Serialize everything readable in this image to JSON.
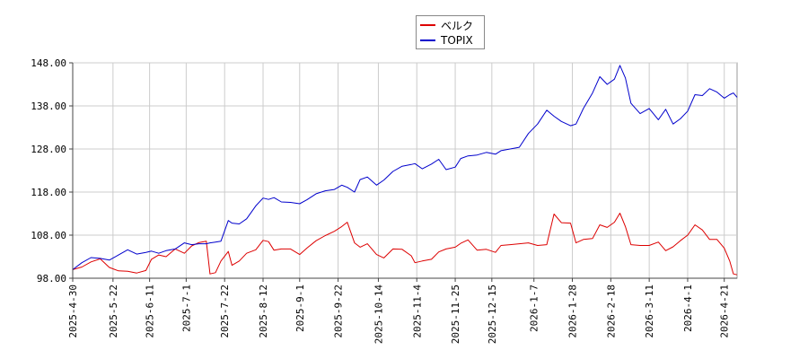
{
  "chart_data": {
    "type": "line",
    "title": "",
    "xlabel": "",
    "ylabel": "",
    "ylim": [
      98,
      148
    ],
    "y_ticks": [
      "98.00",
      "108.00",
      "118.00",
      "128.00",
      "138.00",
      "148.00"
    ],
    "x_ticks": [
      "2025-4-30",
      "2025-5-22",
      "2025-6-11",
      "2025-7-1",
      "2025-7-22",
      "2025-8-12",
      "2025-9-1",
      "2025-9-22",
      "2025-10-14",
      "2025-11-4",
      "2025-11-25",
      "2025-12-15",
      "2026-1-7",
      "2026-1-28",
      "2026-2-18",
      "2026-3-11",
      "2026-4-1",
      "2026-4-21"
    ],
    "grid": true,
    "legend_position": "top-center",
    "x_start": "2025-4-30",
    "x_end": "2026-4-28",
    "series": [
      {
        "name": "ベルク",
        "color": "#dd0000",
        "points": [
          [
            "2025-4-30",
            100.0
          ],
          [
            "2025-5-5",
            100.6
          ],
          [
            "2025-5-10",
            101.8
          ],
          [
            "2025-5-15",
            102.5
          ],
          [
            "2025-5-20",
            100.5
          ],
          [
            "2025-5-25",
            99.7
          ],
          [
            "2025-5-30",
            99.6
          ],
          [
            "2025-6-4",
            99.2
          ],
          [
            "2025-6-9",
            99.8
          ],
          [
            "2025-6-12",
            102.4
          ],
          [
            "2025-6-16",
            103.4
          ],
          [
            "2025-6-20",
            103.0
          ],
          [
            "2025-6-25",
            104.8
          ],
          [
            "2025-6-30",
            103.8
          ],
          [
            "2025-7-4",
            105.5
          ],
          [
            "2025-7-8",
            106.3
          ],
          [
            "2025-7-12",
            106.6
          ],
          [
            "2025-7-14",
            99.0
          ],
          [
            "2025-7-17",
            99.3
          ],
          [
            "2025-7-20",
            102.0
          ],
          [
            "2025-7-24",
            104.2
          ],
          [
            "2025-7-26",
            101.0
          ],
          [
            "2025-7-30",
            102.0
          ],
          [
            "2025-8-3",
            103.8
          ],
          [
            "2025-8-8",
            104.6
          ],
          [
            "2025-8-12",
            106.8
          ],
          [
            "2025-8-15",
            106.5
          ],
          [
            "2025-8-18",
            104.5
          ],
          [
            "2025-8-22",
            104.8
          ],
          [
            "2025-8-27",
            104.8
          ],
          [
            "2025-9-1",
            103.5
          ],
          [
            "2025-9-5",
            105.0
          ],
          [
            "2025-9-10",
            106.7
          ],
          [
            "2025-9-15",
            107.9
          ],
          [
            "2025-9-20",
            108.9
          ],
          [
            "2025-9-24",
            110.0
          ],
          [
            "2025-9-27",
            111.0
          ],
          [
            "2025-10-1",
            106.2
          ],
          [
            "2025-10-4",
            105.2
          ],
          [
            "2025-10-8",
            106.0
          ],
          [
            "2025-10-13",
            103.5
          ],
          [
            "2025-10-17",
            102.7
          ],
          [
            "2025-10-22",
            104.8
          ],
          [
            "2025-10-27",
            104.7
          ],
          [
            "2025-11-1",
            103.2
          ],
          [
            "2025-11-3",
            101.6
          ],
          [
            "2025-11-7",
            102.0
          ],
          [
            "2025-11-12",
            102.4
          ],
          [
            "2025-11-16",
            104.1
          ],
          [
            "2025-11-20",
            104.8
          ],
          [
            "2025-11-25",
            105.2
          ],
          [
            "2025-11-28",
            106.1
          ],
          [
            "2025-12-2",
            106.9
          ],
          [
            "2025-12-7",
            104.5
          ],
          [
            "2025-12-12",
            104.7
          ],
          [
            "2025-12-17",
            104.0
          ],
          [
            "2025-12-20",
            105.6
          ],
          [
            "2025-12-25",
            105.8
          ],
          [
            "2025-12-30",
            106.0
          ],
          [
            "2026-1-4",
            106.2
          ],
          [
            "2026-1-9",
            105.6
          ],
          [
            "2026-1-14",
            105.8
          ],
          [
            "2026-1-18",
            112.9
          ],
          [
            "2026-1-22",
            110.9
          ],
          [
            "2026-1-27",
            110.8
          ],
          [
            "2026-1-30",
            106.2
          ],
          [
            "2026-2-3",
            107.0
          ],
          [
            "2026-2-8",
            107.2
          ],
          [
            "2026-2-12",
            110.4
          ],
          [
            "2026-2-16",
            109.8
          ],
          [
            "2026-2-20",
            111.0
          ],
          [
            "2026-2-23",
            113.1
          ],
          [
            "2026-2-26",
            110.0
          ],
          [
            "2026-3-1",
            105.8
          ],
          [
            "2026-3-6",
            105.6
          ],
          [
            "2026-3-11",
            105.6
          ],
          [
            "2026-3-16",
            106.4
          ],
          [
            "2026-3-20",
            104.4
          ],
          [
            "2026-3-24",
            105.3
          ],
          [
            "2026-3-28",
            106.7
          ],
          [
            "2026-4-1",
            108.0
          ],
          [
            "2026-4-5",
            110.4
          ],
          [
            "2026-4-9",
            109.2
          ],
          [
            "2026-4-13",
            107.0
          ],
          [
            "2026-4-17",
            107.0
          ],
          [
            "2026-4-21",
            105.0
          ],
          [
            "2026-4-24",
            102.0
          ],
          [
            "2026-4-26",
            99.0
          ],
          [
            "2026-4-28",
            98.8
          ]
        ]
      },
      {
        "name": "TOPIX",
        "color": "#0000cc",
        "points": [
          [
            "2025-4-30",
            100.0
          ],
          [
            "2025-5-5",
            101.6
          ],
          [
            "2025-5-10",
            102.8
          ],
          [
            "2025-5-15",
            102.6
          ],
          [
            "2025-5-20",
            102.2
          ],
          [
            "2025-5-25",
            103.4
          ],
          [
            "2025-5-30",
            104.6
          ],
          [
            "2025-6-4",
            103.6
          ],
          [
            "2025-6-9",
            104.0
          ],
          [
            "2025-6-12",
            104.3
          ],
          [
            "2025-6-16",
            103.8
          ],
          [
            "2025-6-20",
            104.4
          ],
          [
            "2025-6-25",
            104.8
          ],
          [
            "2025-6-30",
            106.2
          ],
          [
            "2025-7-4",
            105.8
          ],
          [
            "2025-7-8",
            106.0
          ],
          [
            "2025-7-12",
            106.0
          ],
          [
            "2025-7-14",
            106.2
          ],
          [
            "2025-7-17",
            106.4
          ],
          [
            "2025-7-20",
            106.6
          ],
          [
            "2025-7-24",
            111.4
          ],
          [
            "2025-7-26",
            110.8
          ],
          [
            "2025-7-30",
            110.6
          ],
          [
            "2025-8-3",
            111.8
          ],
          [
            "2025-8-8",
            114.8
          ],
          [
            "2025-8-12",
            116.6
          ],
          [
            "2025-8-15",
            116.3
          ],
          [
            "2025-8-18",
            116.7
          ],
          [
            "2025-8-22",
            115.7
          ],
          [
            "2025-8-27",
            115.6
          ],
          [
            "2025-9-1",
            115.3
          ],
          [
            "2025-9-5",
            116.2
          ],
          [
            "2025-9-10",
            117.6
          ],
          [
            "2025-9-15",
            118.3
          ],
          [
            "2025-9-20",
            118.6
          ],
          [
            "2025-9-24",
            119.6
          ],
          [
            "2025-9-27",
            119.1
          ],
          [
            "2025-10-1",
            118.0
          ],
          [
            "2025-10-4",
            120.9
          ],
          [
            "2025-10-8",
            121.5
          ],
          [
            "2025-10-13",
            119.6
          ],
          [
            "2025-10-17",
            120.8
          ],
          [
            "2025-10-22",
            122.8
          ],
          [
            "2025-10-27",
            124.0
          ],
          [
            "2025-11-1",
            124.4
          ],
          [
            "2025-11-3",
            124.6
          ],
          [
            "2025-11-7",
            123.4
          ],
          [
            "2025-11-12",
            124.5
          ],
          [
            "2025-11-16",
            125.6
          ],
          [
            "2025-11-20",
            123.2
          ],
          [
            "2025-11-25",
            123.8
          ],
          [
            "2025-11-28",
            125.8
          ],
          [
            "2025-12-2",
            126.4
          ],
          [
            "2025-12-7",
            126.6
          ],
          [
            "2025-12-12",
            127.2
          ],
          [
            "2025-12-17",
            126.8
          ],
          [
            "2025-12-20",
            127.6
          ],
          [
            "2025-12-25",
            128.0
          ],
          [
            "2025-12-30",
            128.4
          ],
          [
            "2026-1-4",
            131.6
          ],
          [
            "2026-1-9",
            133.8
          ],
          [
            "2026-1-14",
            137.0
          ],
          [
            "2026-1-18",
            135.6
          ],
          [
            "2026-1-22",
            134.4
          ],
          [
            "2026-1-27",
            133.4
          ],
          [
            "2026-1-30",
            133.8
          ],
          [
            "2026-2-3",
            137.4
          ],
          [
            "2026-2-8",
            141.0
          ],
          [
            "2026-2-12",
            144.8
          ],
          [
            "2026-2-16",
            143.0
          ],
          [
            "2026-2-20",
            144.2
          ],
          [
            "2026-2-23",
            147.4
          ],
          [
            "2026-2-26",
            144.5
          ],
          [
            "2026-3-1",
            138.6
          ],
          [
            "2026-3-6",
            136.2
          ],
          [
            "2026-3-11",
            137.4
          ],
          [
            "2026-3-16",
            134.8
          ],
          [
            "2026-3-20",
            137.2
          ],
          [
            "2026-3-24",
            133.8
          ],
          [
            "2026-3-28",
            135.0
          ],
          [
            "2026-4-1",
            136.8
          ],
          [
            "2026-4-5",
            140.6
          ],
          [
            "2026-4-9",
            140.4
          ],
          [
            "2026-4-13",
            142.0
          ],
          [
            "2026-4-17",
            141.2
          ],
          [
            "2026-4-21",
            139.8
          ],
          [
            "2026-4-24",
            140.6
          ],
          [
            "2026-4-26",
            141.0
          ],
          [
            "2026-4-28",
            140.0
          ]
        ]
      }
    ]
  }
}
